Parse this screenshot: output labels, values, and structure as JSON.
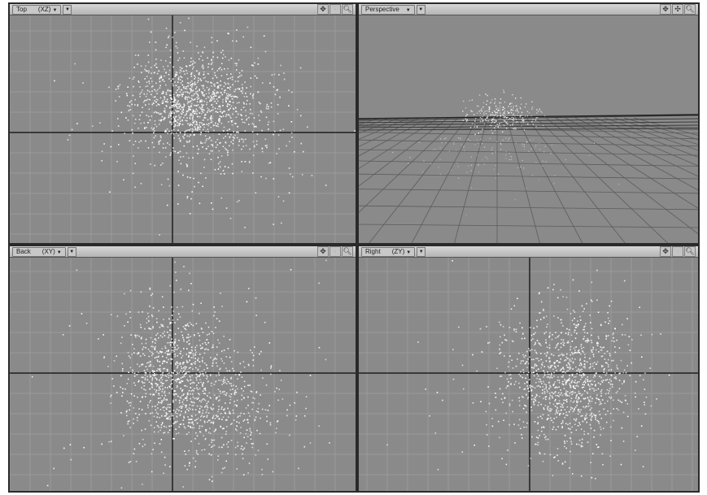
{
  "viewports": {
    "top": {
      "label": "Top",
      "axes": "(XZ)",
      "dropdown_icon": "triangle-down-icon",
      "mode_icon": "triangle-down-icon"
    },
    "persp": {
      "label": "Perspective",
      "axes": "",
      "dropdown_icon": "triangle-down-icon",
      "mode_icon": "triangle-down-icon"
    },
    "back": {
      "label": "Back",
      "axes": "(XY)",
      "dropdown_icon": "triangle-down-icon",
      "mode_icon": "triangle-down-icon"
    },
    "right": {
      "label": "Right",
      "axes": "(ZY)",
      "dropdown_icon": "triangle-down-icon",
      "mode_icon": "triangle-down-icon"
    }
  },
  "nav_icons": [
    "move-icon",
    "rotate-icon",
    "zoom-icon"
  ],
  "colors": {
    "viewport_bg": "#8a8a8a",
    "header_bg": "#c4c4c4",
    "grid": "#9a9a9a",
    "axis": "#1e1e1e",
    "particles": "#ffffff",
    "frame": "#2a2a2a"
  }
}
